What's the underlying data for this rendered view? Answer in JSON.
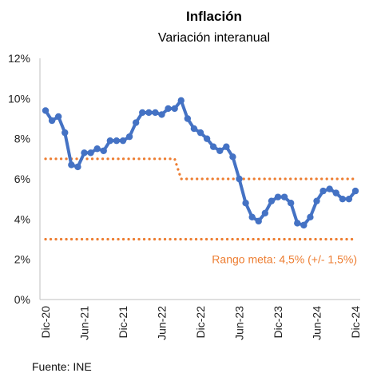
{
  "chart_data": {
    "type": "line",
    "title": "Inflación",
    "subtitle": "Variación interanual",
    "source": "Fuente: INE",
    "xlabel": "",
    "ylabel": "",
    "ylim": [
      0,
      12
    ],
    "ytick_values": [
      0,
      2,
      4,
      6,
      8,
      10,
      12
    ],
    "ytick_labels": [
      "0%",
      "2%",
      "4%",
      "6%",
      "8%",
      "10%",
      "12%"
    ],
    "x_months": [
      "Dic-20",
      "Ene-21",
      "Feb-21",
      "Mar-21",
      "Abr-21",
      "May-21",
      "Jun-21",
      "Jul-21",
      "Ago-21",
      "Sep-21",
      "Oct-21",
      "Nov-21",
      "Dic-21",
      "Ene-22",
      "Feb-22",
      "Mar-22",
      "Abr-22",
      "May-22",
      "Jun-22",
      "Jul-22",
      "Ago-22",
      "Sep-22",
      "Oct-22",
      "Nov-22",
      "Dic-22",
      "Ene-23",
      "Feb-23",
      "Mar-23",
      "Abr-23",
      "May-23",
      "Jun-23",
      "Jul-23",
      "Ago-23",
      "Sep-23",
      "Oct-23",
      "Nov-23",
      "Dic-23",
      "Ene-24",
      "Feb-24",
      "Mar-24",
      "Abr-24",
      "May-24",
      "Jun-24",
      "Jul-24",
      "Ago-24",
      "Sep-24",
      "Oct-24",
      "Nov-24",
      "Dic-24"
    ],
    "xtick_labels": [
      "Dic-20",
      "Jun-21",
      "Dic-21",
      "Jun-22",
      "Dic-22",
      "Jun-23",
      "Dic-23",
      "Jun-24",
      "Dic-24"
    ],
    "xtick_every": 6,
    "grid": false,
    "series": [
      {
        "color": "#4472C4",
        "style": "solid-with-markers",
        "values": [
          9.4,
          8.9,
          9.1,
          8.3,
          6.7,
          6.6,
          7.3,
          7.3,
          7.5,
          7.4,
          7.9,
          7.9,
          7.9,
          8.1,
          8.8,
          9.3,
          9.3,
          9.3,
          9.2,
          9.5,
          9.5,
          9.9,
          9.0,
          8.5,
          8.3,
          8.0,
          7.6,
          7.4,
          7.6,
          7.1,
          6.0,
          4.8,
          4.1,
          3.9,
          4.3,
          4.9,
          5.1,
          5.1,
          4.8,
          3.8,
          3.7,
          4.1,
          4.9,
          5.4,
          5.5,
          5.3,
          5.0,
          5.0,
          5.4
        ]
      },
      {
        "color": "#ED7D31",
        "style": "dotted",
        "values": [
          7.0,
          7.0,
          7.0,
          7.0,
          7.0,
          7.0,
          7.0,
          7.0,
          7.0,
          7.0,
          7.0,
          7.0,
          7.0,
          7.0,
          7.0,
          7.0,
          7.0,
          7.0,
          7.0,
          7.0,
          7.0,
          6.0,
          6.0,
          6.0,
          6.0,
          6.0,
          6.0,
          6.0,
          6.0,
          6.0,
          6.0,
          6.0,
          6.0,
          6.0,
          6.0,
          6.0,
          6.0,
          6.0,
          6.0,
          6.0,
          6.0,
          6.0,
          6.0,
          6.0,
          6.0,
          6.0,
          6.0,
          6.0,
          6.0
        ]
      },
      {
        "color": "#ED7D31",
        "style": "dotted",
        "values": [
          3.0,
          3.0,
          3.0,
          3.0,
          3.0,
          3.0,
          3.0,
          3.0,
          3.0,
          3.0,
          3.0,
          3.0,
          3.0,
          3.0,
          3.0,
          3.0,
          3.0,
          3.0,
          3.0,
          3.0,
          3.0,
          3.0,
          3.0,
          3.0,
          3.0,
          3.0,
          3.0,
          3.0,
          3.0,
          3.0,
          3.0,
          3.0,
          3.0,
          3.0,
          3.0,
          3.0,
          3.0,
          3.0,
          3.0,
          3.0,
          3.0,
          3.0,
          3.0,
          3.0,
          3.0,
          3.0,
          3.0,
          3.0,
          3.0
        ]
      }
    ],
    "annotations": [
      {
        "text": "Rango meta: 4,5% (+/- 1,5%)",
        "color": "#ED7D31",
        "near_y": 2.0,
        "align": "right"
      }
    ]
  }
}
